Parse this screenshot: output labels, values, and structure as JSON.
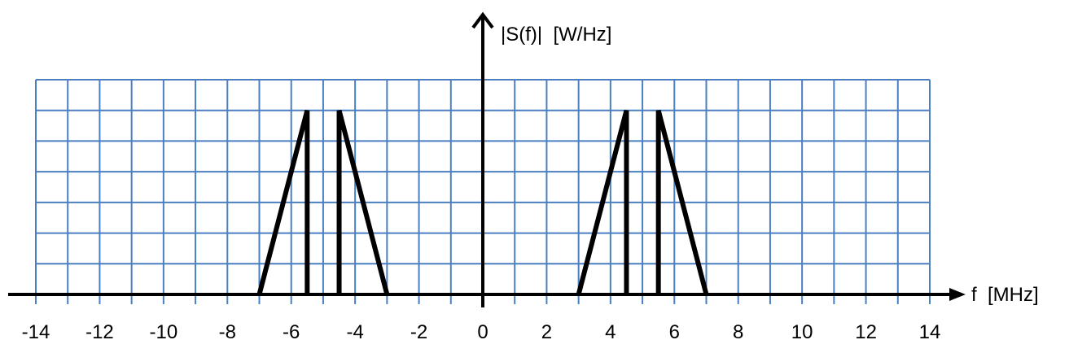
{
  "chart_data": {
    "type": "line",
    "title": "",
    "xlabel": "f  [MHz]",
    "ylabel": "|S(f)|  [W/Hz]",
    "xlim": [
      -14,
      14
    ],
    "ylim": [
      0,
      7
    ],
    "grid": true,
    "x_ticks": [
      -14,
      -12,
      -10,
      -8,
      -6,
      -4,
      -2,
      0,
      2,
      4,
      6,
      8,
      10,
      12,
      14
    ],
    "x_tick_labels": [
      "-14",
      "-12",
      "-10",
      "-8",
      "-6",
      "-4",
      "-2",
      "0",
      "2",
      "4",
      "6",
      "8",
      "10",
      "12",
      "14"
    ],
    "series": [
      {
        "x": [
          -7,
          -5.5,
          -5.5
        ],
        "y": [
          0,
          6,
          0
        ]
      },
      {
        "x": [
          -4.5,
          -4.5,
          -3
        ],
        "y": [
          0,
          6,
          0
        ]
      },
      {
        "x": [
          3,
          4.5,
          4.5
        ],
        "y": [
          0,
          6,
          0
        ]
      },
      {
        "x": [
          5.5,
          5.5,
          7
        ],
        "y": [
          0,
          6,
          0
        ]
      }
    ],
    "colors": {
      "grid": "#4a7fc1",
      "axis": "#000000",
      "series": "#000000"
    }
  }
}
